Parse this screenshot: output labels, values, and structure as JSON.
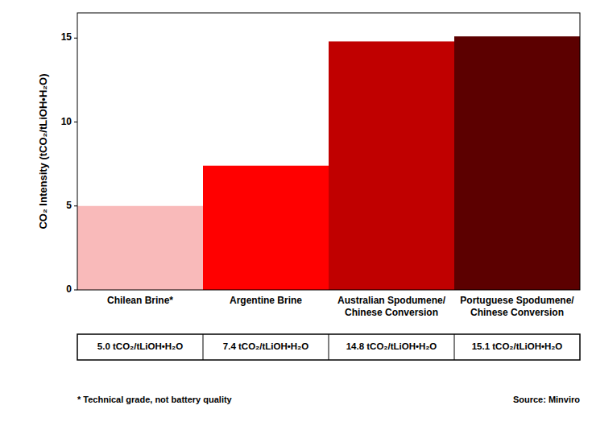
{
  "chart_data": {
    "type": "bar",
    "categories": [
      "Chilean Brine*",
      "Argentine Brine",
      "Australian Spodumene/\nChinese Conversion",
      "Portuguese Spodumene/\nChinese Conversion"
    ],
    "values": [
      5.0,
      7.4,
      14.8,
      15.1
    ],
    "colors": [
      "#F9BABA",
      "#FF0000",
      "#C00000",
      "#5C0000"
    ],
    "y_label": "CO₂ Intensity (tCO₂/tLiOH•H₂O)",
    "ylim": [
      0,
      16.5
    ],
    "yticks": [
      0,
      5,
      10,
      15
    ],
    "grid": false,
    "data_labels": true,
    "value_labels": [
      "5.0 tCO₂/tLiOH•H₂O",
      "7.4 tCO₂/tLiOH•H₂O",
      "14.8 tCO₂/tLiOH•H₂O",
      "15.1 tCO₂/tLiOH•H₂O"
    ],
    "annotations": [
      "* Technical grade, not battery quality",
      "Source: Minviro"
    ]
  }
}
